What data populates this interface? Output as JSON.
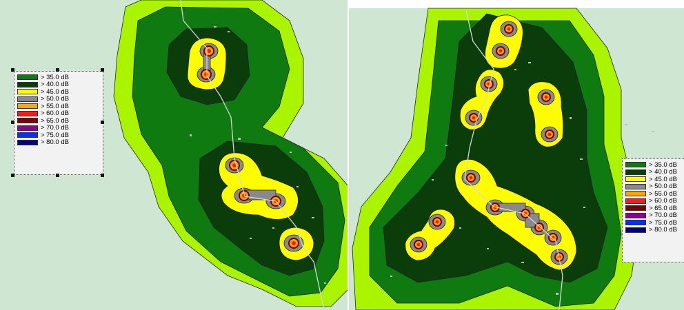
{
  "colors": {
    "background": "#cfe6d2",
    "c35": "#0f7a10",
    "c40": "#0a3d0a",
    "c45": "#fdfd00",
    "c50": "#8a8a8a",
    "c55": "#f8a800",
    "c60": "#ff1a1a",
    "c65": "#7a0000",
    "c70": "#8a0090",
    "c75": "#0030ff",
    "c80": "#000080",
    "outer_band": "#aaf400"
  },
  "legend_left": {
    "items": [
      {
        "label": ">  35.0 dB",
        "color": "#0f7a10"
      },
      {
        "label": ">  40.0 dB",
        "color": "#0a3d0a"
      },
      {
        "label": ">  45.0 dB",
        "color": "#fdfd00"
      },
      {
        "label": ">  50.0 dB",
        "color": "#8a8a8a"
      },
      {
        "label": ">  55.0 dB",
        "color": "#f8a800"
      },
      {
        "label": ">  60.0 dB",
        "color": "#ff1a1a"
      },
      {
        "label": ">  65.0 dB",
        "color": "#7a0000"
      },
      {
        "label": ">  70.0 dB",
        "color": "#8a0090"
      },
      {
        "label": ">  75.0 dB",
        "color": "#0030ff"
      },
      {
        "label": ">  80.0 dB",
        "color": "#000080"
      }
    ]
  },
  "legend_right": {
    "items": [
      {
        "label": ">  35.0 dB",
        "color": "#0f7a10"
      },
      {
        "label": ">  40.0 dB",
        "color": "#0a3d0a"
      },
      {
        "label": ">  45.0 dB",
        "color": "#fdfd00"
      },
      {
        "label": ">  50.0 dB",
        "color": "#8a8a8a"
      },
      {
        "label": ">  55.0 dB",
        "color": "#f8a800"
      },
      {
        "label": ">  60.0 dB",
        "color": "#ff1a1a"
      },
      {
        "label": ">  65.0 dB",
        "color": "#7a0000"
      },
      {
        "label": ">  70.0 dB",
        "color": "#8a0090"
      },
      {
        "label": ">  75.0 dB",
        "color": "#0030ff"
      },
      {
        "label": ">  80.0 dB",
        "color": "#000080"
      }
    ]
  }
}
